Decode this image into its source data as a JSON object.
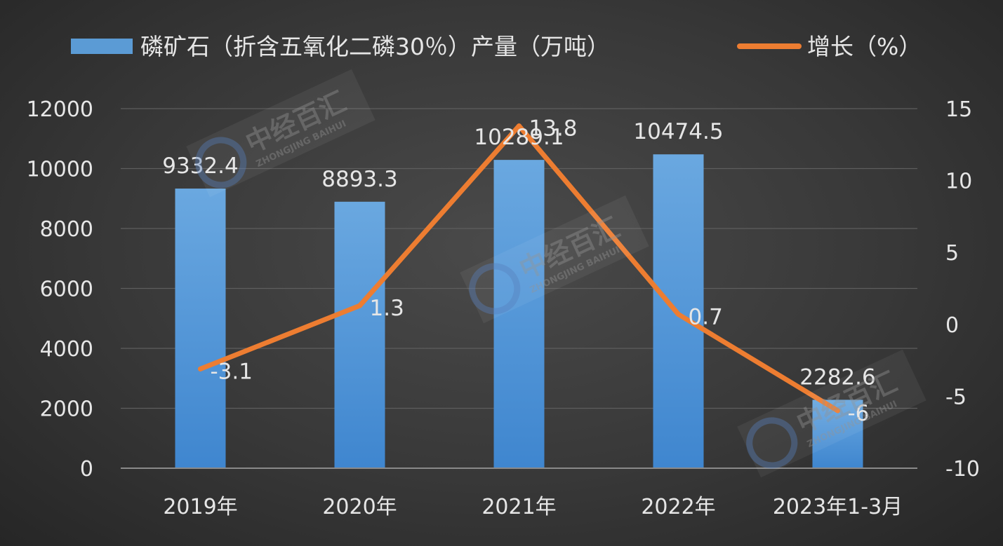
{
  "chart_data": {
    "type": "bar+line",
    "categories": [
      "2019年",
      "2020年",
      "2021年",
      "2022年",
      "2023年1-3月"
    ],
    "series": [
      {
        "name": "磷矿石（折含五氧化二磷30％）产量（万吨）",
        "type": "bar",
        "axis": "left",
        "values": [
          9332.4,
          8893.3,
          10289.1,
          10474.5,
          2282.6
        ],
        "labels": [
          "9332.4",
          "8893.3",
          "10289.1",
          "10474.5",
          "2282.6"
        ],
        "color": "#5b9bd5"
      },
      {
        "name": "增长（%）",
        "type": "line",
        "axis": "right",
        "values": [
          -3.1,
          1.3,
          13.8,
          0.7,
          -6
        ],
        "labels": [
          "-3.1",
          "1.3",
          "13.8",
          "0.7",
          "-6"
        ],
        "color": "#ed7d31"
      }
    ],
    "y_left": {
      "range": [
        0,
        12000
      ],
      "ticks": [
        "0",
        "2000",
        "4000",
        "6000",
        "8000",
        "10000",
        "12000"
      ]
    },
    "y_right": {
      "range": [
        -10,
        15
      ],
      "ticks": [
        "-10",
        "-5",
        "0",
        "5",
        "10",
        "15"
      ]
    },
    "grid": true,
    "legend": "top"
  },
  "watermark": {
    "text": "中经百汇",
    "subtext": "ZHONGJING BAIHUI"
  }
}
